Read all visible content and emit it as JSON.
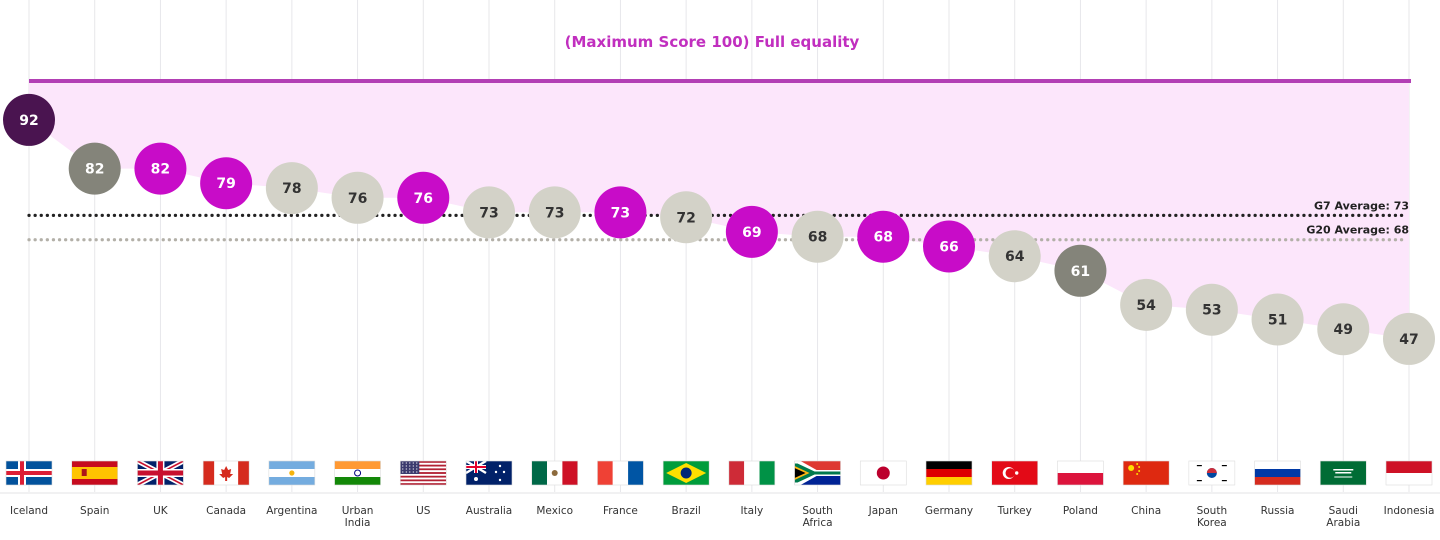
{
  "chart_data": {
    "type": "scatter",
    "title": "(Maximum Score 100) Full equality",
    "max_score": 100,
    "ylim": [
      40,
      100
    ],
    "grid": true,
    "categories": [
      {
        "name": [
          "Iceland"
        ],
        "value": 92,
        "group": "leader",
        "flag": "iceland"
      },
      {
        "name": [
          "Spain"
        ],
        "value": 82,
        "group": "highlight-grey",
        "flag": "spain"
      },
      {
        "name": [
          "UK"
        ],
        "value": 82,
        "group": "g7",
        "flag": "uk"
      },
      {
        "name": [
          "Canada"
        ],
        "value": 79,
        "group": "g7",
        "flag": "canada"
      },
      {
        "name": [
          "Argentina"
        ],
        "value": 78,
        "group": "g20",
        "flag": "argentina"
      },
      {
        "name": [
          "Urban",
          "India"
        ],
        "value": 76,
        "group": "g20",
        "flag": "india"
      },
      {
        "name": [
          "US"
        ],
        "value": 76,
        "group": "g7",
        "flag": "us"
      },
      {
        "name": [
          "Australia"
        ],
        "value": 73,
        "group": "g20",
        "flag": "australia"
      },
      {
        "name": [
          "Mexico"
        ],
        "value": 73,
        "group": "g20",
        "flag": "mexico"
      },
      {
        "name": [
          "France"
        ],
        "value": 73,
        "group": "g7",
        "flag": "france"
      },
      {
        "name": [
          "Brazil"
        ],
        "value": 72,
        "group": "g20",
        "flag": "brazil"
      },
      {
        "name": [
          "Italy"
        ],
        "value": 69,
        "group": "g7",
        "flag": "italy"
      },
      {
        "name": [
          "South",
          "Africa"
        ],
        "value": 68,
        "group": "g20",
        "flag": "south-africa"
      },
      {
        "name": [
          "Japan"
        ],
        "value": 68,
        "group": "g7",
        "flag": "japan"
      },
      {
        "name": [
          "Germany"
        ],
        "value": 66,
        "group": "g7",
        "flag": "germany"
      },
      {
        "name": [
          "Turkey"
        ],
        "value": 64,
        "group": "g20",
        "flag": "turkey"
      },
      {
        "name": [
          "Poland"
        ],
        "value": 61,
        "group": "highlight-grey",
        "flag": "poland"
      },
      {
        "name": [
          "China"
        ],
        "value": 54,
        "group": "g20",
        "flag": "china"
      },
      {
        "name": [
          "South",
          "Korea"
        ],
        "value": 53,
        "group": "g20",
        "flag": "south-korea"
      },
      {
        "name": [
          "Russia"
        ],
        "value": 51,
        "group": "g20",
        "flag": "russia"
      },
      {
        "name": [
          "Saudi",
          "Arabia"
        ],
        "value": 49,
        "group": "g20",
        "flag": "saudi-arabia"
      },
      {
        "name": [
          "Indonesia"
        ],
        "value": 47,
        "group": "g20",
        "flag": "indonesia"
      }
    ],
    "averages": [
      {
        "label": "G7 Average: 73",
        "value": 73,
        "color": "#222222"
      },
      {
        "label": "G20 Average: 68",
        "value": 68,
        "color": "#b3b0a8"
      }
    ],
    "group_colors": {
      "leader": {
        "fill": "#4a1450",
        "text": "#ffffff"
      },
      "highlight-grey": {
        "fill": "#84847a",
        "text": "#ffffff"
      },
      "g7": {
        "fill": "#c80cc8",
        "text": "#ffffff"
      },
      "g20": {
        "fill": "#d3d2c8",
        "text": "#333333"
      }
    },
    "colors": {
      "max_line": "#b23fb4",
      "gap_fill": "#fce6fb",
      "grid": "#e7e7ea",
      "title": "#c12fbf"
    }
  }
}
